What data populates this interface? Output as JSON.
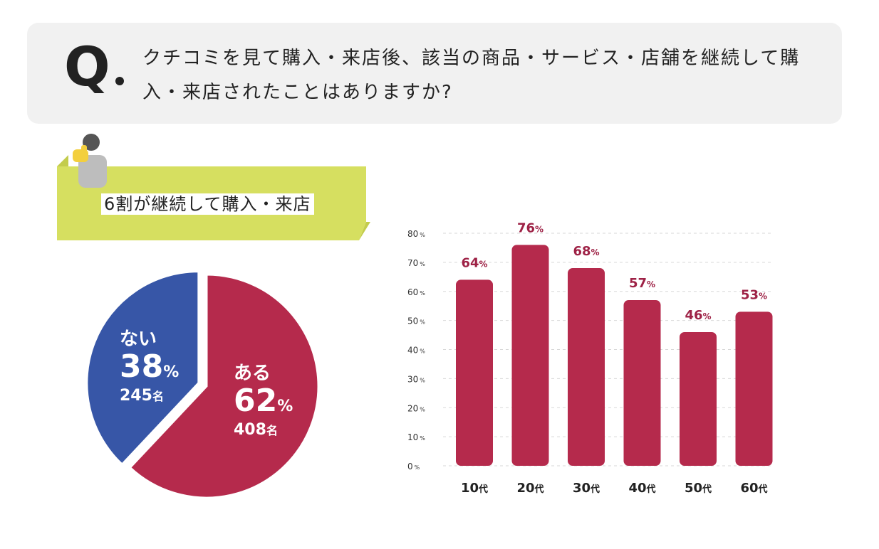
{
  "question": {
    "mark": "Q",
    "text": "クチコミを見て購入・来店後、該当の商品・サービス・店舗を継続して購入・来店されたことはありますか?"
  },
  "banner": {
    "text": "6割が継続して購入・来店",
    "icon": "person-thumbs-up-icon",
    "color": "#d6df60"
  },
  "pie_labels": {
    "yes": {
      "word": "ある",
      "pct": "62",
      "pct_unit": "%",
      "count": "408",
      "count_unit": "名"
    },
    "no": {
      "word": "ない",
      "pct": "38",
      "pct_unit": "%",
      "count": "245",
      "count_unit": "名"
    }
  },
  "chart_data": [
    {
      "type": "pie",
      "categories": [
        "ある",
        "ない"
      ],
      "values": [
        62,
        38
      ],
      "counts": [
        408,
        245
      ],
      "colors": [
        "#b52a4c",
        "#3756a7"
      ],
      "exploded": "ない"
    },
    {
      "type": "bar",
      "categories": [
        "10代",
        "20代",
        "30代",
        "40代",
        "50代",
        "60代"
      ],
      "values": [
        64,
        76,
        68,
        57,
        46,
        53
      ],
      "value_unit": "%",
      "ylim": [
        0,
        80
      ],
      "yticks": [
        0,
        10,
        20,
        30,
        40,
        50,
        60,
        70,
        80
      ],
      "ytick_unit": "%",
      "grid": true,
      "bar_color": "#b52a4c",
      "label_color": "#9e2246"
    }
  ]
}
